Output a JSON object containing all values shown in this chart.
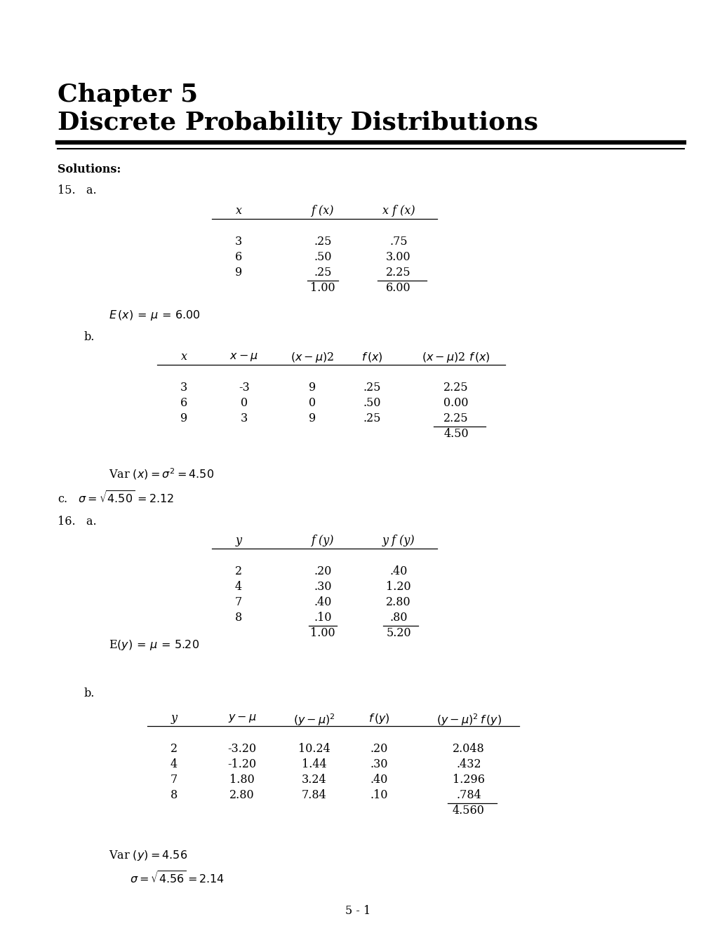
{
  "title_line1": "Chapter 5",
  "title_line2": "Discrete Probability Distributions",
  "bg_color": "#ffffff",
  "text_color": "#000000",
  "page_number": "5 - 1",
  "figsize": [
    10.2,
    13.2
  ],
  "dpi": 100
}
